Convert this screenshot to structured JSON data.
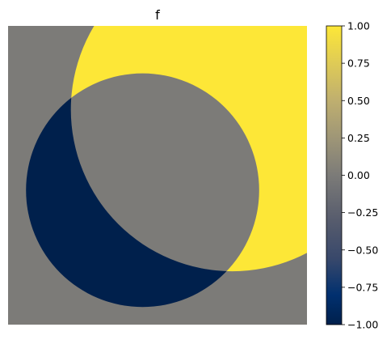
{
  "chart_data": {
    "type": "heatmap",
    "title": "f",
    "colormap": "cividis",
    "colorbar": {
      "min": -1.0,
      "max": 1.0,
      "ticks": [
        1.0,
        0.75,
        0.5,
        0.25,
        0.0,
        -0.25,
        -0.5,
        -0.75,
        -1.0
      ],
      "tick_labels": [
        "1.00",
        "0.75",
        "0.50",
        "0.25",
        "0.00",
        "−0.25",
        "−0.50",
        "−0.75",
        "−1.00"
      ]
    },
    "regions": [
      {
        "value": 1.0,
        "color": "#fde737",
        "shape": "disk",
        "center": [
          0.75,
          0.72
        ],
        "radius": 0.54
      },
      {
        "value": 0.0,
        "color": "#7c7b78",
        "shape": "disk",
        "center": [
          0.45,
          0.45
        ],
        "radius": 0.39
      },
      {
        "value": -1.0,
        "color": "#00204c",
        "shape": "disk-difference",
        "center": [
          0.45,
          0.45
        ],
        "radius": 0.39
      }
    ],
    "background": {
      "value": 0.0,
      "color": "#7c7b78"
    },
    "axes_visible": false
  }
}
